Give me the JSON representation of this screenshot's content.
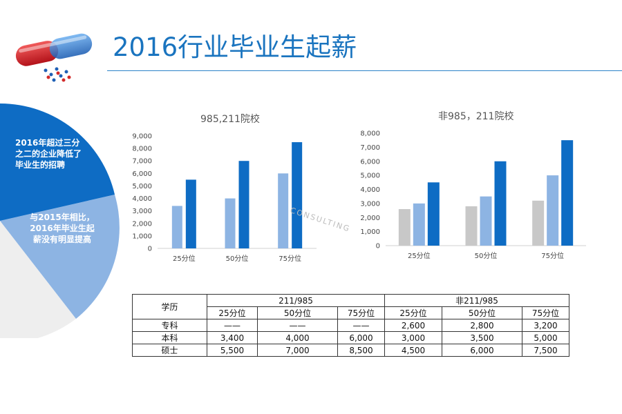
{
  "page": {
    "title": "2016行业毕业生起薪",
    "watermark": "CONSULTING"
  },
  "pie_labels": {
    "segment1": "2016年超过三分之二的企业降低了毕业生的招聘",
    "segment2": "与2015年相比，2016年毕业生起薪没有明显提高"
  },
  "colors": {
    "title": "#1a74bf",
    "dark_blue": "#0e6cc4",
    "light_blue": "#8db4e3",
    "gray": "#c8c8c8",
    "pie_dark": "#0e6cc4",
    "pie_light": "#8db4e3",
    "pie_gray": "#eeeeee"
  },
  "chart_data": [
    {
      "type": "bar",
      "title": "985,211院校",
      "categories": [
        "25分位",
        "50分位",
        "75分位"
      ],
      "series": [
        {
          "values": [
            3400,
            4000,
            6000
          ],
          "color": "#8db4e3"
        },
        {
          "values": [
            5500,
            7000,
            8500
          ],
          "color": "#0e6cc4"
        }
      ],
      "ylim": [
        0,
        9000
      ],
      "yticks": [
        "0",
        "1,000",
        "2,000",
        "3,000",
        "4,000",
        "5,000",
        "6,000",
        "7,000",
        "8,000",
        "9,000"
      ],
      "grid": false
    },
    {
      "type": "bar",
      "title": "非985，211院校",
      "categories": [
        "25分位",
        "50分位",
        "75分位"
      ],
      "series": [
        {
          "values": [
            2600,
            2800,
            3200
          ],
          "color": "#c8c8c8"
        },
        {
          "values": [
            3000,
            3500,
            5000
          ],
          "color": "#8db4e3"
        },
        {
          "values": [
            4500,
            6000,
            7500
          ],
          "color": "#0e6cc4"
        }
      ],
      "ylim": [
        0,
        8000
      ],
      "yticks": [
        "0",
        "1,000",
        "2,000",
        "3,000",
        "4,000",
        "5,000",
        "6,000",
        "7,000",
        "8,000"
      ],
      "grid": false
    }
  ],
  "table": {
    "header_label": "学历",
    "group1": "211/985",
    "group2": "非211/985",
    "subheaders": [
      "25分位",
      "50分位",
      "75分位",
      "25分位",
      "50分位",
      "75分位"
    ],
    "rows": [
      {
        "label": "专科",
        "cells": [
          "——",
          "——",
          "——",
          "2,600",
          "2,800",
          "3,200"
        ]
      },
      {
        "label": "本科",
        "cells": [
          "3,400",
          "4,000",
          "6,000",
          "3,000",
          "3,500",
          "5,000"
        ]
      },
      {
        "label": "硕士",
        "cells": [
          "5,500",
          "7,000",
          "8,500",
          "4,500",
          "6,000",
          "7,500"
        ]
      }
    ]
  }
}
